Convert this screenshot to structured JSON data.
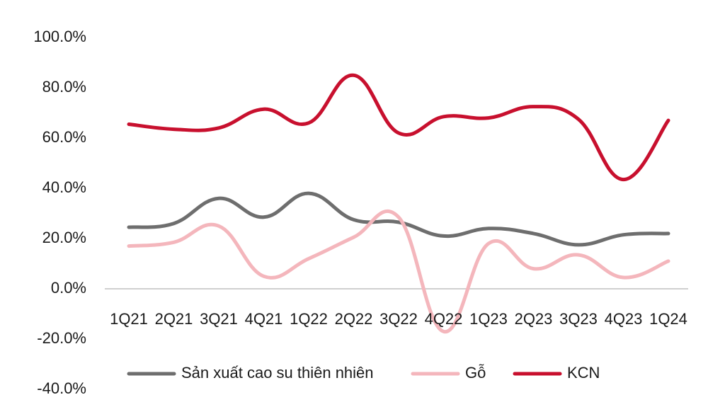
{
  "chart_data": {
    "type": "line",
    "categories": [
      "1Q21",
      "2Q21",
      "3Q21",
      "4Q21",
      "1Q22",
      "2Q22",
      "3Q22",
      "4Q22",
      "1Q23",
      "2Q23",
      "3Q23",
      "4Q23",
      "1Q24"
    ],
    "series": [
      {
        "name": "Sản xuất cao su thiên nhiên",
        "color": "#6e6e6e",
        "values": [
          24.5,
          26.0,
          36.0,
          28.5,
          38.0,
          27.5,
          26.5,
          21.0,
          24.0,
          22.0,
          17.5,
          21.5,
          22.0
        ]
      },
      {
        "name": "Gỗ",
        "color": "#f4b6bc",
        "values": [
          17.0,
          18.5,
          25.0,
          5.0,
          12.0,
          20.5,
          28.5,
          -17.0,
          18.0,
          8.0,
          13.5,
          4.5,
          11.0
        ]
      },
      {
        "name": "KCN",
        "color": "#c8102e",
        "values": [
          65.5,
          63.5,
          64.0,
          71.5,
          66.0,
          85.0,
          62.0,
          68.5,
          68.0,
          72.5,
          67.5,
          43.5,
          67.0
        ]
      }
    ],
    "yticks": [
      "100.0%",
      "80.0%",
      "60.0%",
      "40.0%",
      "20.0%",
      "0.0%",
      "-20.0%",
      "-40.0%"
    ],
    "ylim": [
      -40,
      100
    ],
    "grid": false,
    "legend": "bottom"
  }
}
